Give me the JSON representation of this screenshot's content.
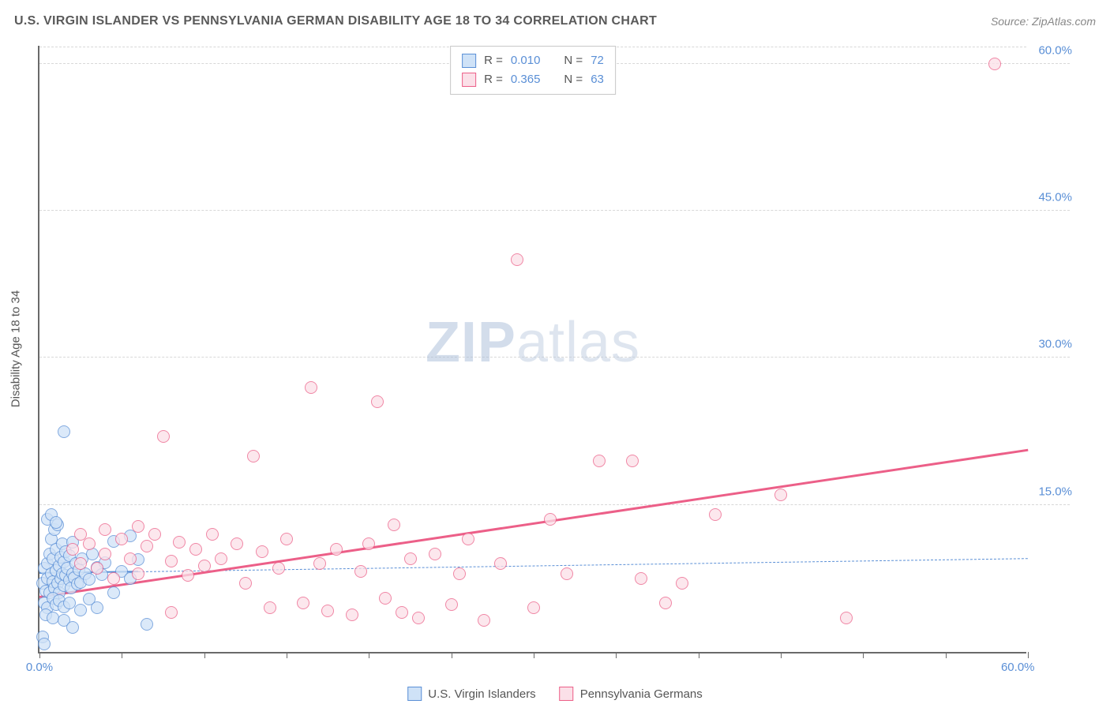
{
  "header": {
    "title": "U.S. VIRGIN ISLANDER VS PENNSYLVANIA GERMAN DISABILITY AGE 18 TO 34 CORRELATION CHART",
    "source": "Source: ZipAtlas.com"
  },
  "chart": {
    "type": "scatter",
    "y_label": "Disability Age 18 to 34",
    "xlim": [
      0,
      60
    ],
    "ylim": [
      0,
      62
    ],
    "x_ticks": [
      0,
      5,
      10,
      15,
      20,
      25,
      30,
      35,
      40,
      45,
      50,
      55,
      60
    ],
    "x_tick_labels": {
      "0": "0.0%",
      "60": "60.0%"
    },
    "y_ticks": [
      15,
      30,
      45,
      60
    ],
    "y_tick_labels": {
      "15": "15.0%",
      "30": "30.0%",
      "45": "45.0%",
      "60": "60.0%"
    },
    "grid_color": "#d8d8d8",
    "axis_color": "#6a6a6a",
    "background_color": "#ffffff",
    "tick_label_color": "#5a8fd6",
    "label_color": "#555555",
    "marker_radius": 8,
    "marker_stroke_width": 1.5,
    "watermark": {
      "text_bold": "ZIP",
      "text_light": "atlas"
    },
    "series": [
      {
        "name": "U.S. Virgin Islanders",
        "legend_label": "U.S. Virgin Islanders",
        "fill_color": "#cfe2f7",
        "stroke_color": "#5a8fd6",
        "r_label": "R =",
        "r_value": "0.010",
        "n_label": "N =",
        "n_value": "72",
        "trend": {
          "x1": 0,
          "y1": 8.0,
          "x2": 60,
          "y2": 9.5,
          "solid_until_x": 6,
          "stroke_width": 2.5,
          "dash": "6,5"
        },
        "points": [
          [
            0.2,
            7.0
          ],
          [
            0.3,
            8.5
          ],
          [
            0.4,
            6.2
          ],
          [
            0.5,
            9.0
          ],
          [
            0.5,
            7.5
          ],
          [
            0.6,
            10.0
          ],
          [
            0.6,
            6.0
          ],
          [
            0.7,
            8.0
          ],
          [
            0.7,
            11.5
          ],
          [
            0.8,
            7.2
          ],
          [
            0.8,
            9.5
          ],
          [
            0.9,
            6.5
          ],
          [
            0.9,
            12.5
          ],
          [
            1.0,
            8.3
          ],
          [
            1.0,
            10.5
          ],
          [
            1.1,
            7.0
          ],
          [
            1.1,
            13.0
          ],
          [
            1.2,
            8.8
          ],
          [
            1.2,
            6.0
          ],
          [
            1.3,
            9.7
          ],
          [
            1.3,
            7.5
          ],
          [
            1.4,
            11.0
          ],
          [
            1.4,
            8.0
          ],
          [
            1.5,
            6.8
          ],
          [
            1.5,
            9.2
          ],
          [
            1.6,
            7.8
          ],
          [
            1.6,
            10.2
          ],
          [
            1.7,
            8.5
          ],
          [
            1.8,
            7.3
          ],
          [
            1.8,
            9.8
          ],
          [
            1.9,
            6.5
          ],
          [
            2.0,
            8.0
          ],
          [
            2.0,
            11.2
          ],
          [
            2.1,
            7.6
          ],
          [
            2.2,
            9.0
          ],
          [
            2.3,
            6.9
          ],
          [
            2.4,
            8.4
          ],
          [
            2.5,
            7.1
          ],
          [
            2.6,
            9.5
          ],
          [
            2.8,
            8.0
          ],
          [
            3.0,
            7.4
          ],
          [
            3.2,
            10.0
          ],
          [
            3.5,
            8.6
          ],
          [
            3.8,
            7.9
          ],
          [
            4.0,
            9.1
          ],
          [
            4.5,
            11.3
          ],
          [
            5.0,
            8.2
          ],
          [
            5.5,
            11.8
          ],
          [
            6.0,
            9.4
          ],
          [
            0.3,
            5.0
          ],
          [
            0.5,
            4.5
          ],
          [
            0.8,
            5.5
          ],
          [
            1.0,
            4.8
          ],
          [
            1.2,
            5.2
          ],
          [
            1.5,
            4.6
          ],
          [
            1.8,
            5.0
          ],
          [
            2.5,
            4.3
          ],
          [
            3.0,
            5.4
          ],
          [
            0.4,
            3.8
          ],
          [
            0.8,
            3.5
          ],
          [
            1.5,
            3.2
          ],
          [
            0.2,
            1.5
          ],
          [
            0.5,
            13.5
          ],
          [
            0.7,
            14.0
          ],
          [
            1.0,
            13.2
          ],
          [
            1.5,
            22.5
          ],
          [
            6.5,
            2.8
          ],
          [
            2.0,
            2.5
          ],
          [
            0.3,
            0.8
          ],
          [
            3.5,
            4.5
          ],
          [
            4.5,
            6.0
          ],
          [
            5.5,
            7.5
          ]
        ]
      },
      {
        "name": "Pennsylvania Germans",
        "legend_label": "Pennsylvania Germans",
        "fill_color": "#fbe0e8",
        "stroke_color": "#ec5f88",
        "r_label": "R =",
        "r_value": "0.365",
        "n_label": "N =",
        "n_value": "63",
        "trend": {
          "x1": 0,
          "y1": 5.5,
          "x2": 60,
          "y2": 20.5,
          "solid_until_x": 60,
          "stroke_width": 3,
          "dash": null
        },
        "points": [
          [
            2.0,
            10.5
          ],
          [
            2.5,
            9.0
          ],
          [
            3.0,
            11.0
          ],
          [
            3.5,
            8.5
          ],
          [
            4.0,
            10.0
          ],
          [
            4.5,
            7.5
          ],
          [
            5.0,
            11.5
          ],
          [
            5.5,
            9.5
          ],
          [
            6.0,
            8.0
          ],
          [
            6.5,
            10.8
          ],
          [
            7.0,
            12.0
          ],
          [
            7.5,
            22.0
          ],
          [
            8.0,
            9.3
          ],
          [
            8.5,
            11.2
          ],
          [
            9.0,
            7.8
          ],
          [
            9.5,
            10.5
          ],
          [
            10.0,
            8.8
          ],
          [
            10.5,
            12.0
          ],
          [
            11.0,
            9.5
          ],
          [
            12.0,
            11.0
          ],
          [
            12.5,
            7.0
          ],
          [
            13.0,
            20.0
          ],
          [
            13.5,
            10.2
          ],
          [
            14.0,
            4.5
          ],
          [
            14.5,
            8.5
          ],
          [
            15.0,
            11.5
          ],
          [
            16.0,
            5.0
          ],
          [
            16.5,
            27.0
          ],
          [
            17.0,
            9.0
          ],
          [
            17.5,
            4.2
          ],
          [
            18.0,
            10.5
          ],
          [
            19.0,
            3.8
          ],
          [
            19.5,
            8.2
          ],
          [
            20.0,
            11.0
          ],
          [
            20.5,
            25.5
          ],
          [
            21.0,
            5.5
          ],
          [
            21.5,
            13.0
          ],
          [
            22.0,
            4.0
          ],
          [
            22.5,
            9.5
          ],
          [
            23.0,
            3.5
          ],
          [
            24.0,
            10.0
          ],
          [
            25.0,
            4.8
          ],
          [
            25.5,
            8.0
          ],
          [
            26.0,
            11.5
          ],
          [
            27.0,
            3.2
          ],
          [
            28.0,
            9.0
          ],
          [
            29.0,
            40.0
          ],
          [
            30.0,
            4.5
          ],
          [
            31.0,
            13.5
          ],
          [
            32.0,
            8.0
          ],
          [
            34.0,
            19.5
          ],
          [
            36.0,
            19.5
          ],
          [
            36.5,
            7.5
          ],
          [
            38.0,
            5.0
          ],
          [
            39.0,
            7.0
          ],
          [
            41.0,
            14.0
          ],
          [
            45.0,
            16.0
          ],
          [
            49.0,
            3.5
          ],
          [
            58.0,
            60.0
          ],
          [
            2.5,
            12.0
          ],
          [
            4.0,
            12.5
          ],
          [
            6.0,
            12.8
          ],
          [
            8.0,
            4.0
          ]
        ]
      }
    ]
  },
  "legend_bottom": [
    {
      "swatch_fill": "#cfe2f7",
      "swatch_stroke": "#5a8fd6",
      "label": "U.S. Virgin Islanders"
    },
    {
      "swatch_fill": "#fbe0e8",
      "swatch_stroke": "#ec5f88",
      "label": "Pennsylvania Germans"
    }
  ]
}
